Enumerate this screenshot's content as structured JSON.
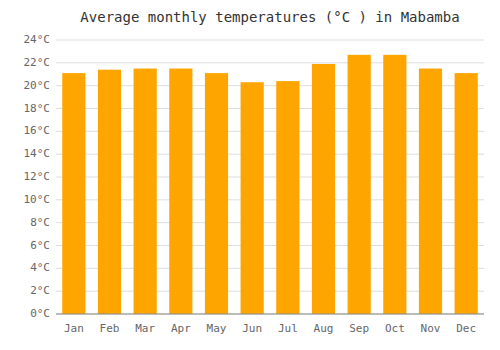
{
  "chart_data": {
    "type": "bar",
    "title": "Average monthly temperatures (°C ) in Mabamba",
    "categories": [
      "Jan",
      "Feb",
      "Mar",
      "Apr",
      "May",
      "Jun",
      "Jul",
      "Aug",
      "Sep",
      "Oct",
      "Nov",
      "Dec"
    ],
    "values": [
      21.1,
      21.4,
      21.5,
      21.5,
      21.1,
      20.3,
      20.4,
      21.9,
      22.7,
      22.7,
      21.5,
      21.1
    ],
    "color": "#FFA500",
    "ylim": [
      0,
      24
    ],
    "yticks": [
      {
        "value": 0,
        "label": "0°C"
      },
      {
        "value": 2,
        "label": "2°C"
      },
      {
        "value": 4,
        "label": "4°C"
      },
      {
        "value": 6,
        "label": "6°C"
      },
      {
        "value": 8,
        "label": "8°C"
      },
      {
        "value": 10,
        "label": "10°C"
      },
      {
        "value": 12,
        "label": "12°C"
      },
      {
        "value": 14,
        "label": "14°C"
      },
      {
        "value": 16,
        "label": "16°C"
      },
      {
        "value": 18,
        "label": "18°C"
      },
      {
        "value": 20,
        "label": "20°C"
      },
      {
        "value": 22,
        "label": "22°C"
      },
      {
        "value": 24,
        "label": "24°C"
      }
    ],
    "grid": true
  }
}
